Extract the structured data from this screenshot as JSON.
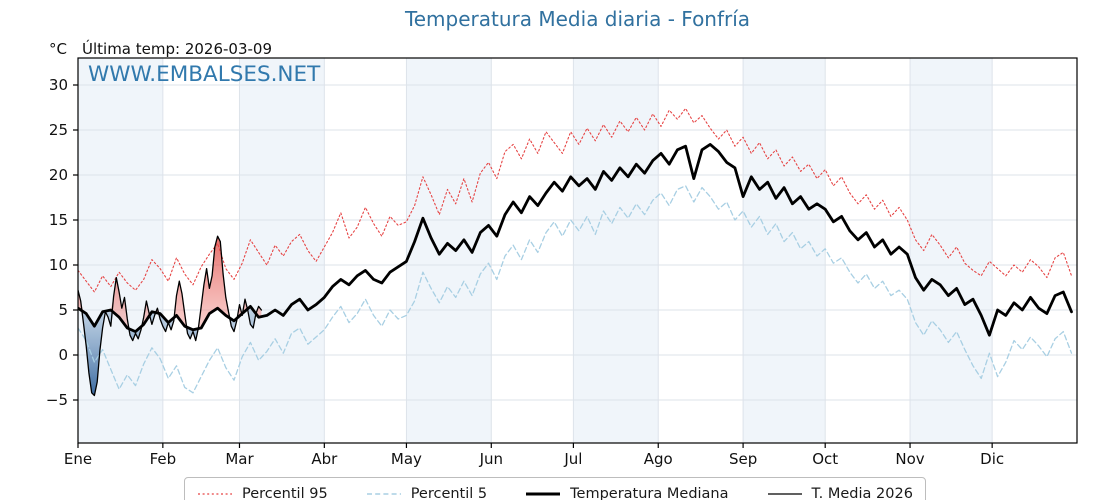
{
  "header": {
    "y_unit_label": "°C",
    "last_temp_annotation": "Última temp: 2026-03-09",
    "watermark": "WWW.EMBALSES.NET"
  },
  "colors": {
    "title_blue": "#31719f",
    "watermark_blue": "#3179ad",
    "band_fill": "#f0f5fa",
    "grid": "#dde3ea",
    "axis": "#000000",
    "p95_red": "#e64545",
    "p5_blue": "#a8cfe3",
    "fill_above_top": "rgba(220,55,50,0.78)",
    "fill_above_bottom": "rgba(242,150,145,0.45)",
    "fill_below_top": "rgba(150,180,210,0.45)",
    "fill_below_bottom": "rgba(38,90,150,0.95)"
  },
  "legend": [
    {
      "label": "Percentil 95",
      "color": "#e64545",
      "dash": "2 2.6",
      "width": 1.3
    },
    {
      "label": "Percentil 5",
      "color": "#a8cfe3",
      "dash": "5 3.2",
      "width": 1.5
    },
    {
      "label": "Temperatura Mediana",
      "color": "#000000",
      "dash": "",
      "width": 3
    },
    {
      "label": "T. Media 2026",
      "color": "#000000",
      "dash": "",
      "width": 1.3
    }
  ],
  "chart_data": {
    "type": "line",
    "title": "Temperatura Media diaria - Fonfría",
    "xlabel": "",
    "ylabel": "°C",
    "annotation": "Última temp: 2026-03-09",
    "watermark": "WWW.EMBALSES.NET",
    "days_in_year": 365,
    "x_tick_labels": [
      "Ene",
      "Feb",
      "Mar",
      "Abr",
      "May",
      "Jun",
      "Jul",
      "Ago",
      "Sep",
      "Oct",
      "Nov",
      "Dic"
    ],
    "month_start_days": [
      0,
      31,
      59,
      90,
      120,
      151,
      181,
      212,
      243,
      273,
      304,
      334
    ],
    "y_tick_values": [
      -5,
      0,
      5,
      10,
      15,
      20,
      25,
      30
    ],
    "y_tick_labels": [
      "−5",
      "0",
      "5",
      "10",
      "15",
      "20",
      "25",
      "30"
    ],
    "ylim": [
      -9.8,
      33.0
    ],
    "grid": true,
    "legend_position": "bottom",
    "series": [
      {
        "name": "Percentil 95",
        "style": "dotted",
        "color": "#e64545",
        "width": 1.1,
        "step_days": 3,
        "start_day": 0,
        "values": [
          9.4,
          8.2,
          7.0,
          8.8,
          7.6,
          9.2,
          8.0,
          7.2,
          8.4,
          10.6,
          9.6,
          8.2,
          10.8,
          9.0,
          7.8,
          9.8,
          11.2,
          12.4,
          9.6,
          8.4,
          10.2,
          12.8,
          11.4,
          10.0,
          12.2,
          11.0,
          12.6,
          13.4,
          11.6,
          10.4,
          12.0,
          13.6,
          15.8,
          13.0,
          14.2,
          16.4,
          14.6,
          13.2,
          15.4,
          14.4,
          14.8,
          16.6,
          19.8,
          17.8,
          15.6,
          18.4,
          16.8,
          19.6,
          17.0,
          20.2,
          21.4,
          19.6,
          22.6,
          23.4,
          21.8,
          24.0,
          22.4,
          24.8,
          23.6,
          22.4,
          24.8,
          23.4,
          25.2,
          23.8,
          25.6,
          24.2,
          26.0,
          24.8,
          26.4,
          25.0,
          26.8,
          25.4,
          27.2,
          26.2,
          27.4,
          25.8,
          26.6,
          25.2,
          24.0,
          25.0,
          23.2,
          24.2,
          22.4,
          23.6,
          21.8,
          22.8,
          21.0,
          22.0,
          20.4,
          21.2,
          19.6,
          20.6,
          18.8,
          19.8,
          18.0,
          16.8,
          17.8,
          16.2,
          17.2,
          15.4,
          16.4,
          15.0,
          12.8,
          11.6,
          13.4,
          12.2,
          10.8,
          12.0,
          10.2,
          9.4,
          8.8,
          10.4,
          9.6,
          8.8,
          10.0,
          9.2,
          10.6,
          9.8,
          8.6,
          10.8,
          11.4,
          8.8
        ]
      },
      {
        "name": "Percentil 5",
        "style": "dashed",
        "color": "#a8cfe3",
        "width": 1.3,
        "step_days": 3,
        "start_day": 0,
        "values": [
          3.0,
          1.6,
          -0.8,
          0.6,
          -1.6,
          -3.8,
          -2.2,
          -3.4,
          -1.0,
          0.8,
          -0.4,
          -2.6,
          -1.2,
          -3.6,
          -4.2,
          -2.4,
          -0.6,
          0.8,
          -1.4,
          -2.8,
          -0.2,
          1.4,
          -0.6,
          0.4,
          1.8,
          0.2,
          2.4,
          3.0,
          1.2,
          2.0,
          2.8,
          4.2,
          5.4,
          3.6,
          4.6,
          6.2,
          4.4,
          3.2,
          5.0,
          4.0,
          4.4,
          6.0,
          9.2,
          7.4,
          5.8,
          7.6,
          6.4,
          8.2,
          6.6,
          9.0,
          10.2,
          8.4,
          11.0,
          12.2,
          10.6,
          12.8,
          11.4,
          13.6,
          14.8,
          13.2,
          15.0,
          13.8,
          15.4,
          13.4,
          16.0,
          14.6,
          16.4,
          15.2,
          16.8,
          15.6,
          17.2,
          18.0,
          16.6,
          18.4,
          18.8,
          17.0,
          18.6,
          17.6,
          16.2,
          17.0,
          15.0,
          16.0,
          14.2,
          15.4,
          13.4,
          14.6,
          12.6,
          13.6,
          11.8,
          12.6,
          11.0,
          11.8,
          10.2,
          10.8,
          9.2,
          8.0,
          9.0,
          7.4,
          8.2,
          6.6,
          7.2,
          6.2,
          3.6,
          2.2,
          3.8,
          2.8,
          1.4,
          2.6,
          0.6,
          -1.2,
          -2.6,
          0.2,
          -2.4,
          -0.8,
          1.6,
          0.6,
          2.0,
          1.0,
          -0.2,
          1.8,
          2.6,
          0.2
        ]
      },
      {
        "name": "Temperatura Mediana",
        "style": "solid",
        "color": "#000000",
        "width": 2.8,
        "step_days": 3,
        "start_day": 0,
        "values": [
          5.2,
          4.6,
          3.2,
          4.8,
          5.0,
          4.2,
          3.0,
          2.6,
          3.4,
          4.8,
          4.6,
          3.6,
          4.4,
          3.2,
          2.8,
          3.0,
          4.6,
          5.2,
          4.4,
          3.8,
          4.6,
          5.4,
          4.2,
          4.4,
          5.0,
          4.4,
          5.6,
          6.2,
          5.0,
          5.6,
          6.4,
          7.6,
          8.4,
          7.8,
          8.8,
          9.4,
          8.4,
          8.0,
          9.2,
          9.8,
          10.4,
          12.6,
          15.2,
          13.0,
          11.2,
          12.4,
          11.6,
          12.8,
          11.4,
          13.6,
          14.4,
          13.2,
          15.6,
          17.0,
          15.8,
          17.6,
          16.6,
          18.0,
          19.2,
          18.2,
          19.8,
          18.8,
          19.6,
          18.4,
          20.4,
          19.4,
          20.8,
          19.8,
          21.2,
          20.2,
          21.6,
          22.4,
          21.2,
          22.8,
          23.2,
          19.6,
          22.8,
          23.4,
          22.6,
          21.4,
          20.8,
          17.6,
          19.8,
          18.4,
          19.2,
          17.4,
          18.6,
          16.8,
          17.6,
          16.2,
          16.8,
          16.2,
          14.8,
          15.4,
          13.8,
          12.8,
          13.6,
          12.0,
          12.8,
          11.2,
          12.0,
          11.2,
          8.6,
          7.2,
          8.4,
          7.8,
          6.6,
          7.4,
          5.6,
          6.2,
          4.4,
          2.2,
          5.0,
          4.4,
          5.8,
          5.0,
          6.4,
          5.2,
          4.6,
          6.6,
          7.0,
          4.8
        ]
      },
      {
        "name": "T. Media 2026",
        "style": "solid",
        "color": "#000000",
        "width": 1.3,
        "step_days": 1,
        "start_day": 0,
        "fill_vs": "Temperatura Mediana",
        "values": [
          7.2,
          6.0,
          3.5,
          1.0,
          -2.0,
          -4.2,
          -4.5,
          -3.0,
          0.5,
          3.0,
          4.8,
          4.2,
          3.2,
          6.5,
          8.6,
          7.0,
          5.2,
          6.4,
          4.0,
          2.2,
          1.6,
          2.4,
          1.8,
          2.8,
          4.2,
          6.0,
          4.6,
          3.4,
          4.4,
          5.2,
          4.0,
          3.2,
          2.6,
          3.6,
          2.8,
          3.8,
          6.6,
          8.2,
          6.8,
          4.6,
          2.4,
          1.8,
          2.6,
          1.6,
          3.0,
          5.4,
          7.8,
          9.6,
          7.4,
          8.8,
          12.0,
          13.2,
          12.6,
          9.0,
          6.4,
          4.8,
          3.2,
          2.6,
          3.8,
          5.6,
          4.4,
          6.2,
          5.0,
          3.4,
          3.0,
          4.6,
          5.4,
          5.0
        ]
      }
    ]
  }
}
